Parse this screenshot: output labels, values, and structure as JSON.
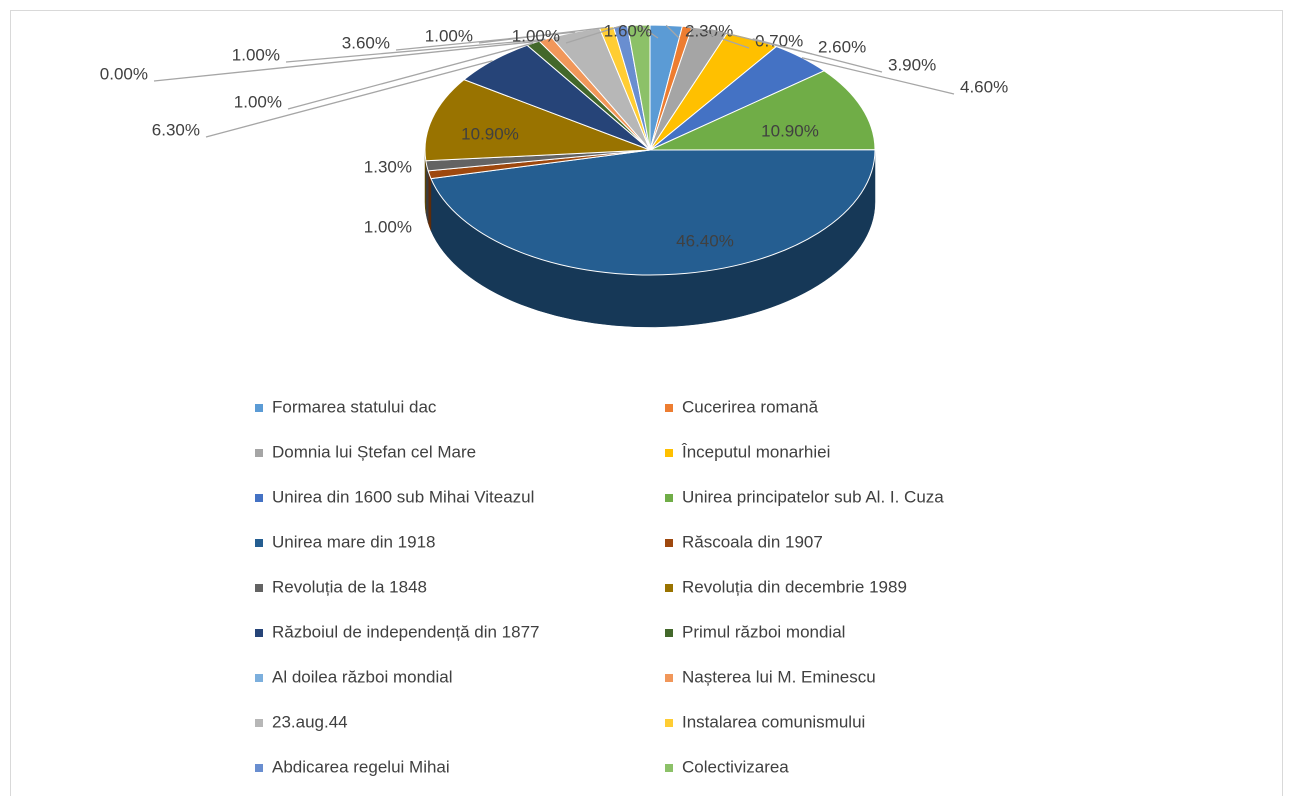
{
  "chart_data": {
    "type": "pie",
    "categories": [
      "Formarea statului dac",
      "Cucerirea romană",
      "Domnia lui Ștefan cel Mare",
      "Începutul monarhiei",
      "Unirea din 1600 sub Mihai Viteazul",
      "Unirea principatelor sub Al. I. Cuza",
      "Unirea mare din 1918",
      "Răscoala din 1907",
      "Revoluția de la 1848",
      "Revoluția din decembrie 1989",
      "Războiul de independență din 1877",
      "Primul război mondial",
      "Al doilea război mondial",
      "Nașterea lui M. Eminescu",
      "23.aug.44",
      "Instalarea comunismului",
      "Abdicarea regelui Mihai",
      "Colectivizarea"
    ],
    "values": [
      2.3,
      0.7,
      2.6,
      3.9,
      4.6,
      10.9,
      46.4,
      1.0,
      1.3,
      10.9,
      6.3,
      1.0,
      0.0,
      1.0,
      3.6,
      1.0,
      1.0,
      1.6
    ],
    "value_labels": [
      "2.30%",
      "0.70%",
      "2.60%",
      "3.90%",
      "4.60%",
      "10.90%",
      "46.40%",
      "1.00%",
      "1.30%",
      "10.90%",
      "6.30%",
      "1.00%",
      "0.00%",
      "1.00%",
      "3.60%",
      "1.00%",
      "1.00%",
      "1.60%"
    ],
    "colors": [
      "#5b9bd5",
      "#ed7d31",
      "#a5a5a5",
      "#ffc000",
      "#4472c4",
      "#70ad47",
      "#255e91",
      "#9e480e",
      "#636363",
      "#997300",
      "#264478",
      "#43682b",
      "#7cafdd",
      "#f1975a",
      "#b7b7b7",
      "#ffcd33",
      "#698ed0",
      "#8cc168"
    ],
    "legend": "bottom"
  }
}
